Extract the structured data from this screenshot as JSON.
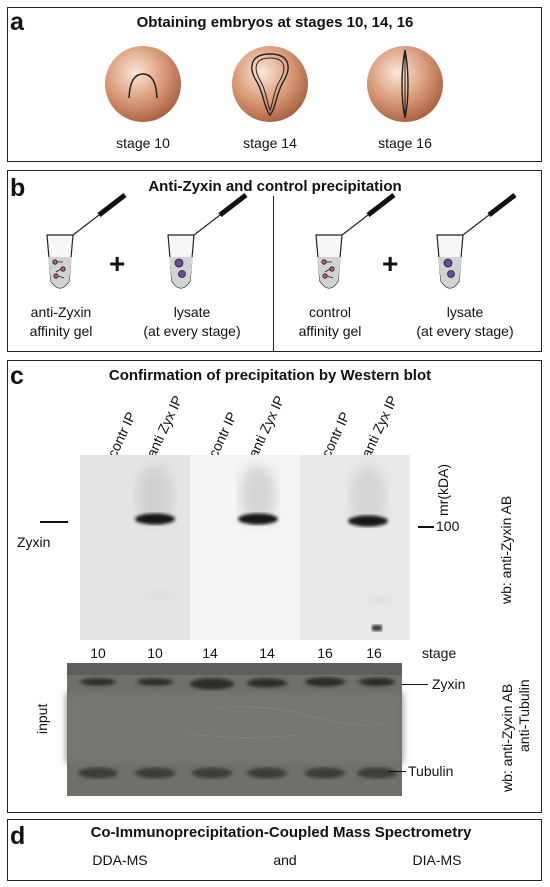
{
  "panel_a": {
    "letter": "a",
    "title": "Obtaining embryos at stages 10, 14, 16",
    "stages": [
      "stage 10",
      "stage 14",
      "stage 16"
    ]
  },
  "panel_b": {
    "letter": "b",
    "title": "Anti-Zyxin and control precipitation",
    "plus": "+",
    "left": {
      "gel": [
        "anti-Zyxin",
        "affinity gel"
      ],
      "lysate": [
        "lysate",
        "(at every stage)"
      ]
    },
    "right": {
      "gel": [
        "control",
        "affinity gel"
      ],
      "lysate": [
        "lysate",
        "(at every stage)"
      ]
    }
  },
  "panel_c": {
    "letter": "c",
    "title": "Confirmation of precipitation by Western blot",
    "lanes": [
      "contr IP",
      "anti Zyx IP",
      "contr IP",
      "anti Zyx IP",
      "contr IP",
      "anti Zyx IP"
    ],
    "mr_label": "mr(kDA)",
    "marker": "100",
    "zyxin_left": "Zyxin",
    "wb_upper": "wb: anti-Zyxin AB",
    "stage_numbers": [
      "10",
      "10",
      "14",
      "14",
      "16",
      "16"
    ],
    "stage_label": "stage",
    "input_label": "input",
    "zyxin_right": "Zyxin",
    "tubulin_right": "Tubulin",
    "wb_lower": [
      "wb: anti-Zyxin AB",
      "anti-Tubulin"
    ]
  },
  "panel_d": {
    "letter": "d",
    "title": "Co-Immunoprecipitation-Coupled Mass Spectrometry",
    "methods": [
      "DDA-MS",
      "and",
      "DIA-MS"
    ]
  },
  "colors": {
    "embryo": "#c98a6a",
    "blot_bg": "#e8e8e8",
    "band": "#151515",
    "input_bg": "#6e6e6a"
  }
}
